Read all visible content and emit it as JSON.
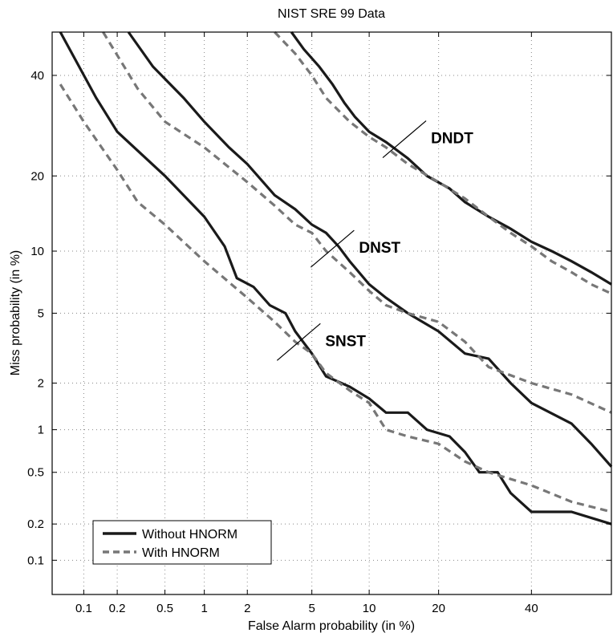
{
  "chart_data": {
    "type": "line",
    "title": "NIST SRE 99 Data",
    "xlabel": "False Alarm probability (in %)",
    "ylabel": "Miss probability (in %)",
    "x_scale": "normal-deviate (probit)",
    "y_scale": "normal-deviate (probit)",
    "xlim": [
      0.05,
      60
    ],
    "ylim": [
      0.05,
      50
    ],
    "x_ticks": [
      0.1,
      0.2,
      0.5,
      1,
      2,
      5,
      10,
      20,
      40
    ],
    "x_tick_labels": [
      "0.1",
      "0.2",
      "0.5",
      "1",
      "2",
      "5",
      "10",
      "20",
      "40"
    ],
    "y_ticks": [
      0.1,
      0.2,
      0.5,
      1,
      2,
      5,
      10,
      20,
      40
    ],
    "y_tick_labels": [
      "0.1",
      "0.2",
      "0.5",
      "1",
      "2",
      "5",
      "10",
      "20",
      "40"
    ],
    "grid": true,
    "legend_position": "bottom-left",
    "legend": [
      "Without HNORM",
      "With HNORM"
    ],
    "colors": {
      "without": "#1a1a1a",
      "with": "#777777",
      "grid": "#888888"
    },
    "series": [
      {
        "name": "Without HNORM",
        "group": "SNST",
        "style": "solid",
        "x": [
          0.06,
          0.13,
          0.2,
          0.5,
          1,
          1.4,
          1.7,
          2.2,
          2.8,
          3.5,
          4,
          5,
          6,
          8,
          10,
          12,
          15,
          18,
          22,
          25,
          28,
          32,
          35,
          40,
          50,
          60
        ],
        "y": [
          50,
          35,
          28,
          20,
          14,
          10.5,
          7.5,
          6.8,
          5.5,
          5.0,
          4.0,
          3.0,
          2.2,
          1.9,
          1.6,
          1.3,
          1.3,
          1.0,
          0.9,
          0.7,
          0.5,
          0.5,
          0.35,
          0.25,
          0.25,
          0.2
        ]
      },
      {
        "name": "With HNORM",
        "group": "SNST",
        "style": "dashed",
        "x": [
          0.06,
          0.1,
          0.2,
          0.3,
          0.5,
          1,
          2,
          3,
          4,
          5,
          6,
          8,
          10,
          12,
          15,
          20,
          25,
          30,
          40,
          50,
          60
        ],
        "y": [
          38,
          30,
          21,
          16,
          13,
          9,
          6.0,
          4.5,
          3.5,
          3.0,
          2.3,
          1.8,
          1.5,
          1.0,
          0.9,
          0.8,
          0.6,
          0.5,
          0.4,
          0.3,
          0.25
        ]
      },
      {
        "name": "Without HNORM",
        "group": "DNST",
        "style": "solid",
        "x": [
          0.25,
          0.4,
          0.7,
          1,
          1.5,
          2,
          3,
          4,
          5,
          6,
          7,
          8,
          10,
          12,
          15,
          20,
          25,
          30,
          35,
          40,
          50,
          55,
          60
        ],
        "y": [
          50,
          42,
          35,
          30,
          25,
          22,
          17,
          15,
          13,
          12,
          10.5,
          9,
          7,
          6,
          5,
          4,
          3,
          2.8,
          2,
          1.5,
          1.1,
          0.8,
          0.55
        ]
      },
      {
        "name": "With HNORM",
        "group": "DNST",
        "style": "dashed",
        "x": [
          0.15,
          0.3,
          0.5,
          1,
          2,
          3,
          4,
          5,
          6,
          8,
          10,
          12,
          15,
          20,
          25,
          30,
          40,
          50,
          60
        ],
        "y": [
          50,
          37,
          30,
          25,
          19,
          15.5,
          13,
          12,
          10,
          8,
          6.5,
          5.5,
          5,
          4.5,
          3.5,
          2.5,
          2.0,
          1.7,
          1.3
        ]
      },
      {
        "name": "Without HNORM",
        "group": "DNDT",
        "style": "solid",
        "x": [
          3.8,
          4.5,
          5.5,
          6.5,
          7.5,
          8.5,
          10,
          12,
          15,
          18,
          22,
          25,
          30,
          35,
          40,
          45,
          50,
          55,
          60
        ],
        "y": [
          50,
          46,
          42,
          38,
          34,
          31,
          28,
          26,
          23,
          20,
          18,
          16,
          14,
          12.5,
          11,
          10,
          9,
          8,
          7
        ]
      },
      {
        "name": "With HNORM",
        "group": "DNDT",
        "style": "dashed",
        "x": [
          3,
          4,
          5,
          6,
          8,
          10,
          12,
          15,
          20,
          25,
          30,
          35,
          40,
          45,
          50,
          55,
          60
        ],
        "y": [
          50,
          45,
          40,
          35,
          30,
          27,
          25,
          22,
          19,
          16.5,
          14,
          12,
          10.5,
          9,
          8,
          7,
          6.3
        ]
      }
    ],
    "annotations": [
      {
        "text": "SNST",
        "x": 4.2,
        "y": 3.6
      },
      {
        "text": "DNST",
        "x": 6.5,
        "y": 10.5
      },
      {
        "text": "DNDT",
        "x": 14.5,
        "y": 27
      }
    ]
  }
}
